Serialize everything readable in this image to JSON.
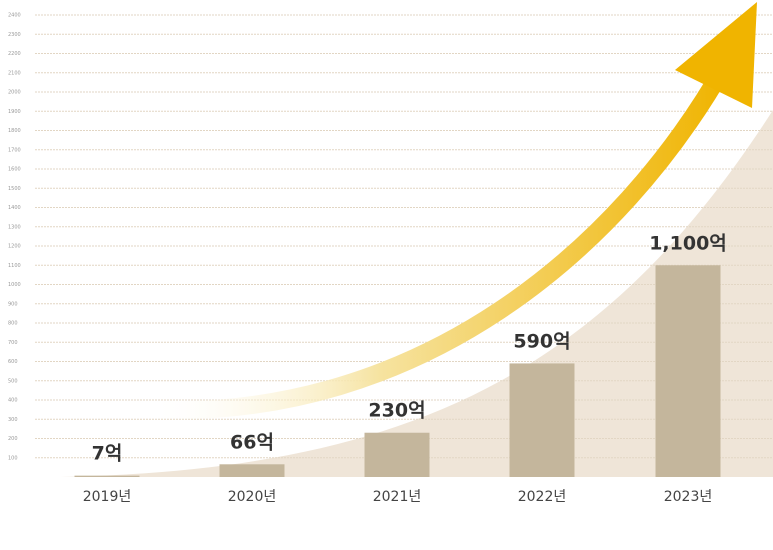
{
  "chart_data": {
    "type": "bar",
    "categories": [
      "2019년",
      "2020년",
      "2021년",
      "2022년",
      "2023년"
    ],
    "values": [
      7,
      66,
      230,
      590,
      1100
    ],
    "value_labels": [
      "7억",
      "66억",
      "230억",
      "590억",
      "1,100억"
    ],
    "color": "#c4b69c",
    "ylim": [
      0,
      2400
    ],
    "yticks": [
      100,
      200,
      300,
      400,
      500,
      600,
      700,
      800,
      900,
      1000,
      1100,
      1200,
      1300,
      1400,
      1500,
      1600,
      1700,
      1800,
      1900,
      2000,
      2100,
      2200,
      2300,
      2400
    ],
    "grid": true
  }
}
